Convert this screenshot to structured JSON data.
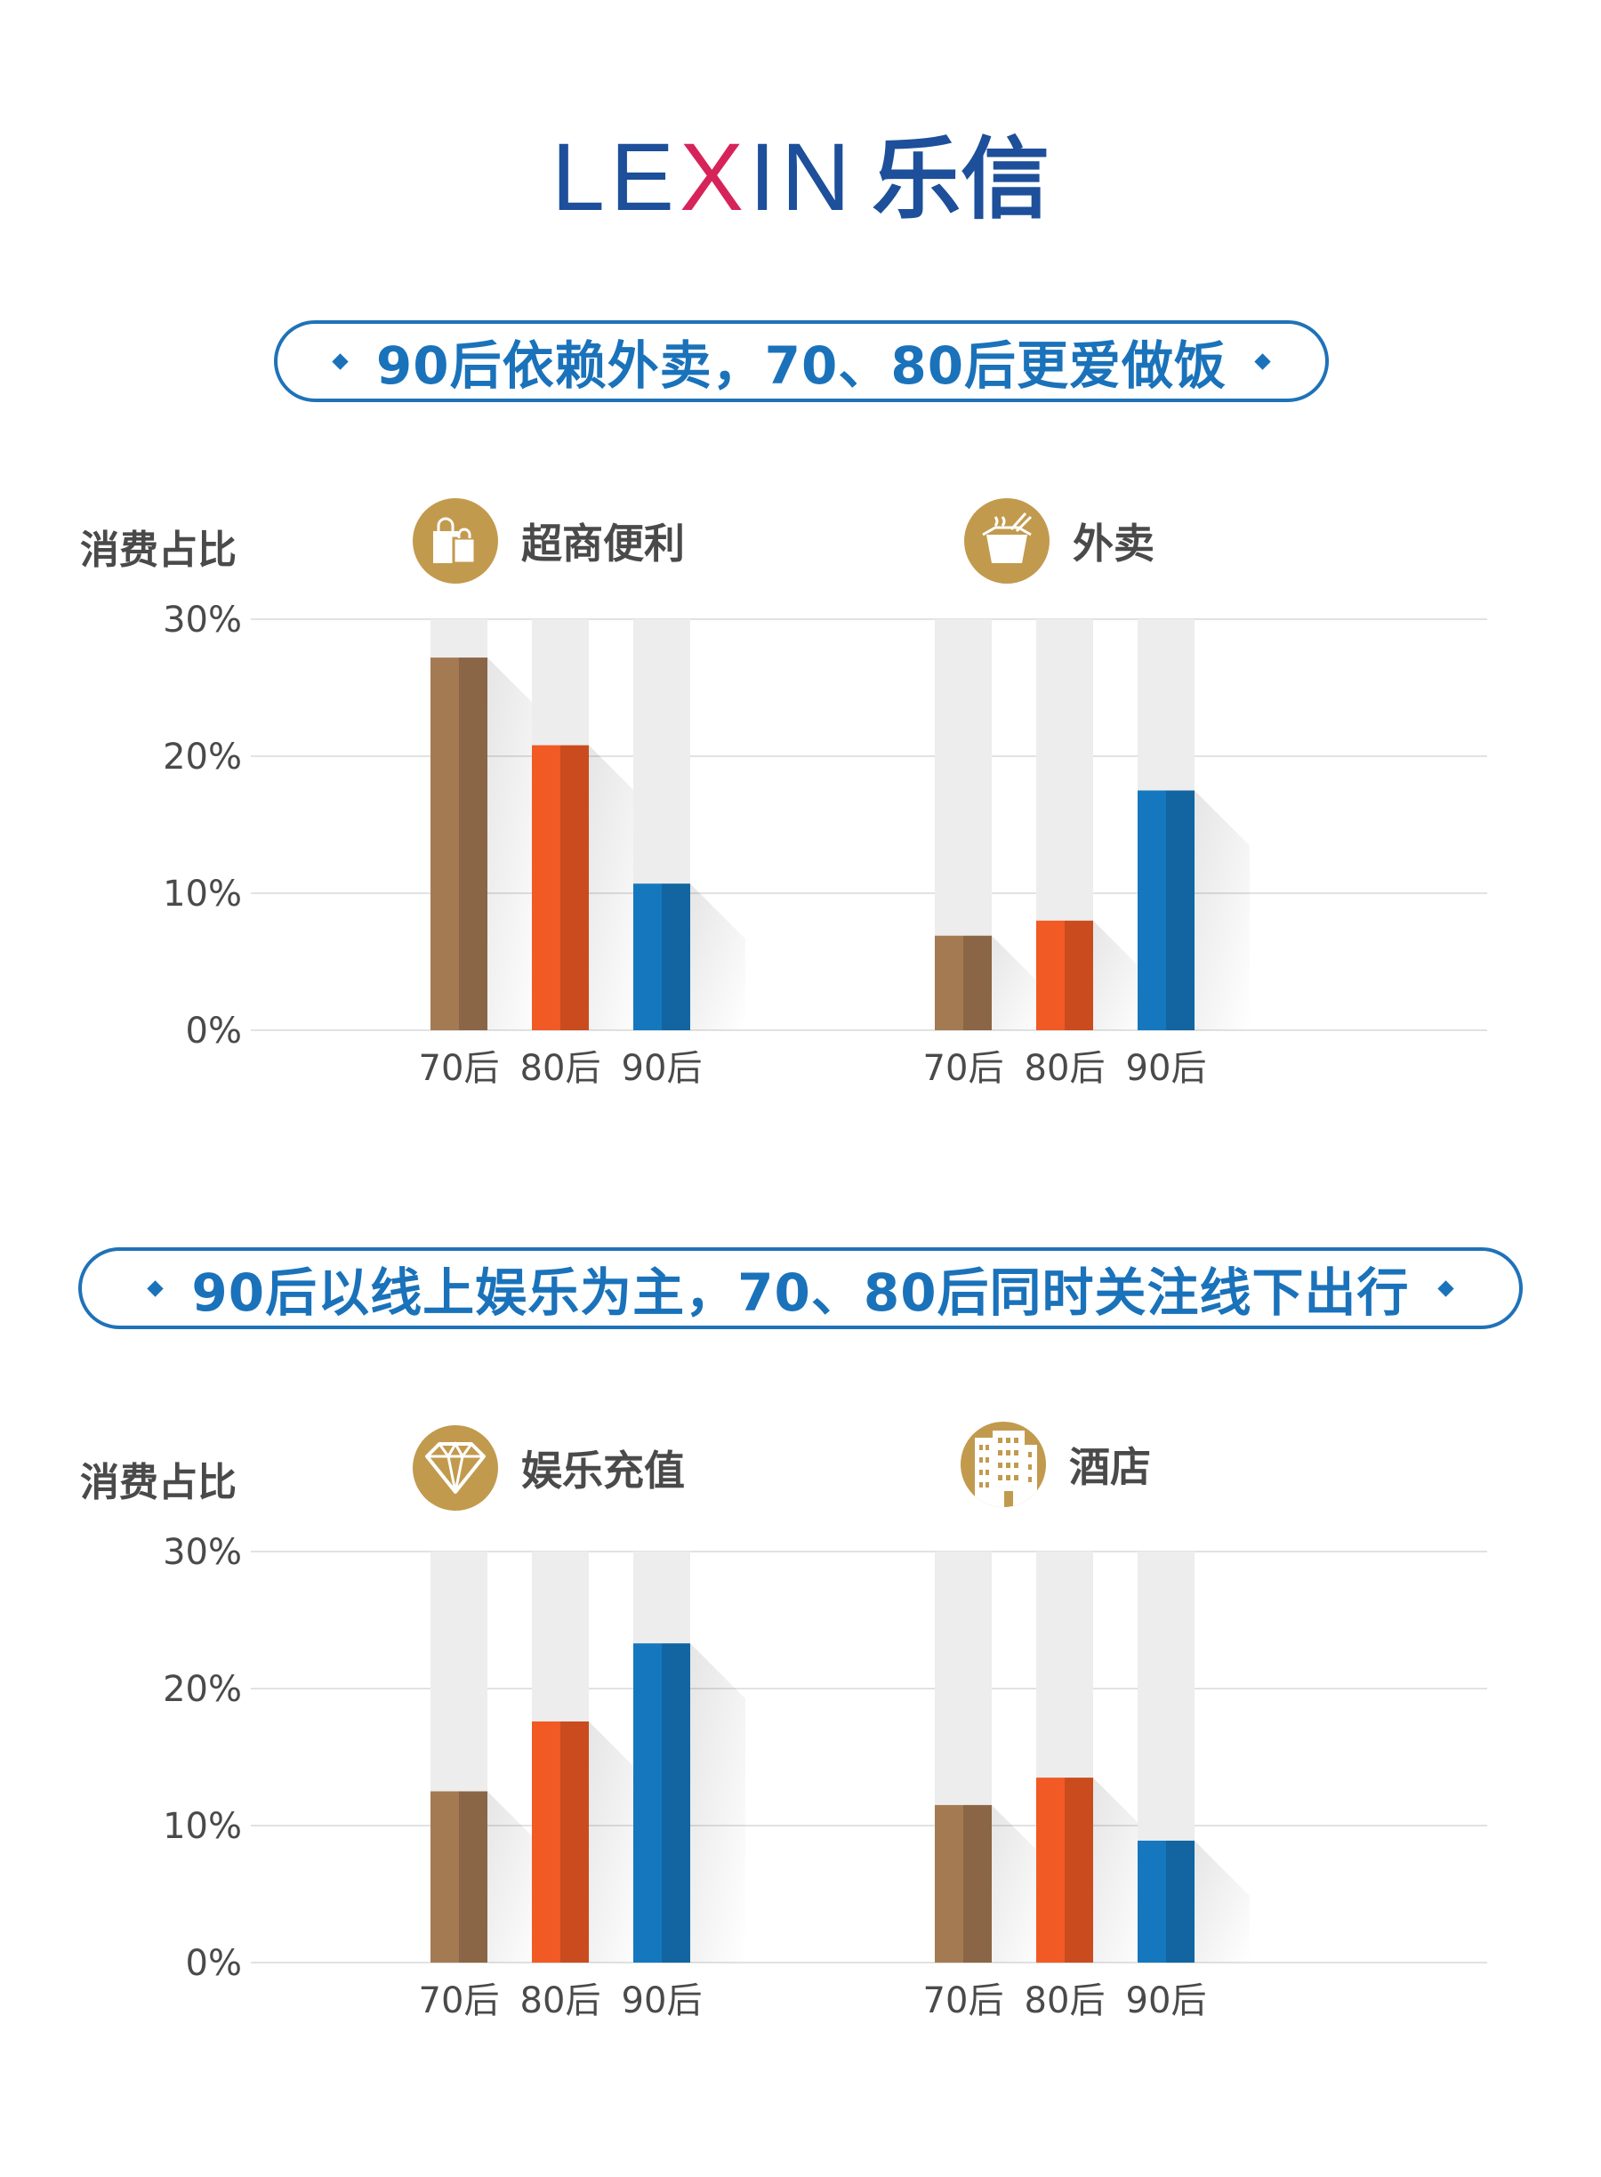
{
  "logo": {
    "latin_1": "LE",
    "latin_2": "X",
    "latin_3": "IN",
    "chinese": "乐信",
    "colors": {
      "blue": "#1d4f9a",
      "red": "#d6245a"
    }
  },
  "colors": {
    "70后": "#a47a53",
    "80后": "#f15a24",
    "90后": "#1578be",
    "badge": "#c29a4e",
    "track": "#ededed"
  },
  "sections": [
    {
      "title": "90后依赖外卖，70、80后更爱做饭",
      "ylabel": "消费占比",
      "panels": [
        {
          "category": "超商便利",
          "icon": "shopping-bags-icon"
        },
        {
          "category": "外卖",
          "icon": "takeout-box-icon"
        }
      ]
    },
    {
      "title": "90后以线上娱乐为主，70、80后同时关注线下出行",
      "ylabel": "消费占比",
      "panels": [
        {
          "category": "娱乐充值",
          "icon": "diamond-icon"
        },
        {
          "category": "酒店",
          "icon": "hotel-building-icon"
        }
      ]
    }
  ],
  "chart_data": [
    {
      "type": "bar",
      "title": "超商便利",
      "categories": [
        "70后",
        "80后",
        "90后"
      ],
      "values": [
        27.2,
        20.8,
        10.7
      ],
      "ylabel": "消费占比",
      "ylim": [
        0,
        30
      ],
      "yticks": [
        "0%",
        "10%",
        "20%",
        "30%"
      ],
      "grid": true
    },
    {
      "type": "bar",
      "title": "外卖",
      "categories": [
        "70后",
        "80后",
        "90后"
      ],
      "values": [
        6.9,
        8.0,
        17.5
      ],
      "ylabel": "消费占比",
      "ylim": [
        0,
        30
      ],
      "yticks": [
        "0%",
        "10%",
        "20%",
        "30%"
      ],
      "grid": true
    },
    {
      "type": "bar",
      "title": "娱乐充值",
      "categories": [
        "70后",
        "80后",
        "90后"
      ],
      "values": [
        12.5,
        17.6,
        23.3
      ],
      "ylabel": "消费占比",
      "ylim": [
        0,
        30
      ],
      "yticks": [
        "0%",
        "10%",
        "20%",
        "30%"
      ],
      "grid": true
    },
    {
      "type": "bar",
      "title": "酒店",
      "categories": [
        "70后",
        "80后",
        "90后"
      ],
      "values": [
        11.5,
        13.5,
        8.9
      ],
      "ylabel": "消费占比",
      "ylim": [
        0,
        30
      ],
      "yticks": [
        "0%",
        "10%",
        "20%",
        "30%"
      ],
      "grid": true
    }
  ]
}
